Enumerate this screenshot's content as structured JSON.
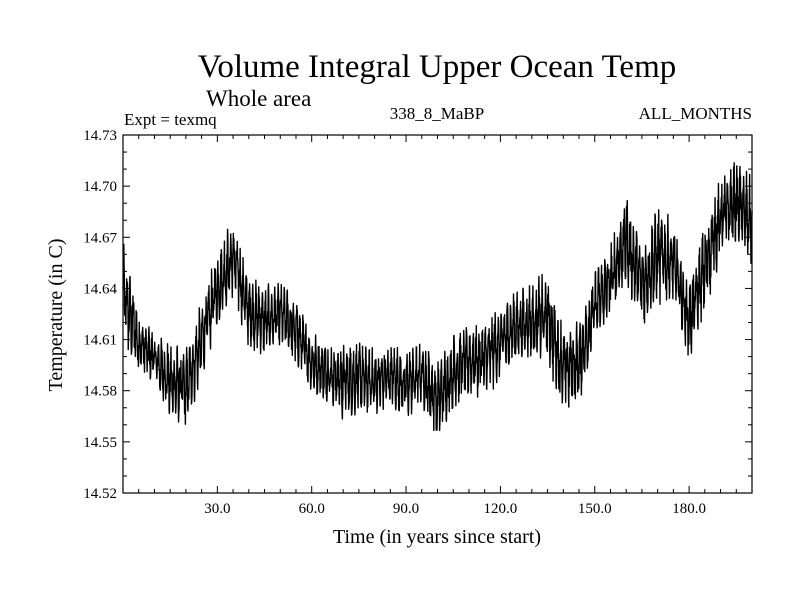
{
  "chart_data": {
    "type": "line",
    "title": "Volume Integral Upper Ocean Temp",
    "subtitle": "Whole area",
    "annotations": {
      "experiment": "Expt = texmq",
      "period": "338_8_MaBP",
      "months": "ALL_MONTHS"
    },
    "xlabel": "Time (in years since start)",
    "ylabel": "Temperature (in C)",
    "xlim": [
      0,
      200
    ],
    "ylim": [
      14.52,
      14.73
    ],
    "x_ticks": [
      30,
      60,
      90,
      120,
      150,
      180
    ],
    "x_tick_labels": [
      "30.0",
      "60.0",
      "90.0",
      "120.0",
      "150.0",
      "180.0"
    ],
    "y_ticks": [
      14.52,
      14.55,
      14.58,
      14.61,
      14.64,
      14.67,
      14.7,
      14.73
    ],
    "y_tick_labels": [
      "14.52",
      "14.55",
      "14.58",
      "14.61",
      "14.64",
      "14.67",
      "14.70",
      "14.73"
    ],
    "grid": false,
    "series": [
      {
        "name": "Volume Integral Upper Ocean Temp",
        "color": "#000000",
        "sampling": "monthly (12 points per year), envelope approximated",
        "x_start": 0,
        "x_end": 200,
        "envelope_x": [
          0,
          5,
          10,
          15,
          20,
          25,
          30,
          35,
          40,
          45,
          50,
          55,
          60,
          65,
          70,
          75,
          80,
          85,
          90,
          95,
          100,
          105,
          110,
          115,
          120,
          125,
          130,
          135,
          140,
          145,
          150,
          155,
          160,
          165,
          170,
          175,
          180,
          185,
          190,
          195,
          200
        ],
        "envelope_low": [
          14.605,
          14.588,
          14.583,
          14.56,
          14.558,
          14.585,
          14.615,
          14.635,
          14.605,
          14.6,
          14.605,
          14.595,
          14.578,
          14.572,
          14.562,
          14.565,
          14.565,
          14.57,
          14.562,
          14.57,
          14.548,
          14.568,
          14.575,
          14.575,
          14.585,
          14.595,
          14.598,
          14.595,
          14.565,
          14.572,
          14.605,
          14.62,
          14.64,
          14.615,
          14.63,
          14.63,
          14.595,
          14.625,
          14.655,
          14.665,
          14.65
        ],
        "envelope_high": [
          14.668,
          14.628,
          14.615,
          14.61,
          14.605,
          14.633,
          14.665,
          14.682,
          14.648,
          14.642,
          14.645,
          14.635,
          14.615,
          14.61,
          14.61,
          14.61,
          14.605,
          14.608,
          14.605,
          14.61,
          14.6,
          14.615,
          14.62,
          14.622,
          14.632,
          14.64,
          14.645,
          14.65,
          14.62,
          14.622,
          14.652,
          14.668,
          14.698,
          14.668,
          14.69,
          14.68,
          14.645,
          14.68,
          14.708,
          14.718,
          14.705
        ]
      }
    ]
  }
}
